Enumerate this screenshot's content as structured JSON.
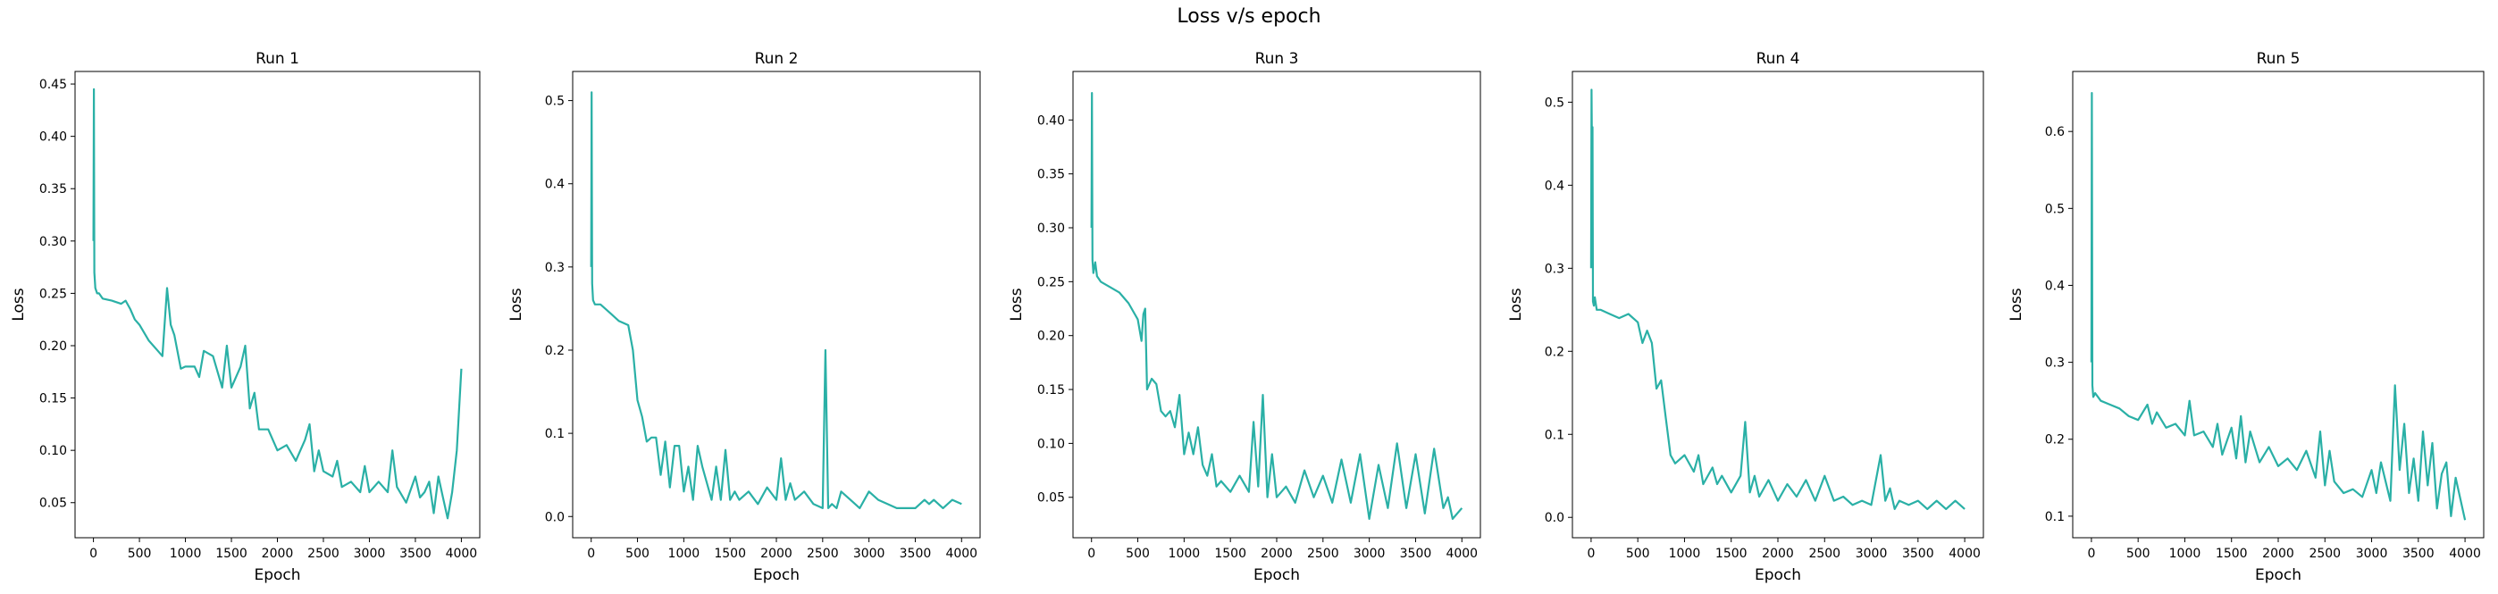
{
  "title": "Loss v/s epoch",
  "style": {
    "line_color": "#2ab0a6"
  },
  "chart_data": [
    {
      "type": "line",
      "title": "Run 1",
      "xlabel": "Epoch",
      "ylabel": "Loss",
      "xlim": [
        -200,
        4200
      ],
      "ylim": [
        0.0165,
        0.462
      ],
      "xticks": [
        0,
        500,
        1000,
        1500,
        2000,
        2500,
        3000,
        3500,
        4000
      ],
      "yticks": [
        0.05,
        0.1,
        0.15,
        0.2,
        0.25,
        0.3,
        0.35,
        0.4,
        0.45
      ],
      "grid": false,
      "series": [
        {
          "x": [
            0,
            5,
            10,
            20,
            40,
            60,
            100,
            200,
            300,
            350,
            400,
            450,
            500,
            600,
            700,
            750,
            800,
            840,
            880,
            950,
            1000,
            1100,
            1150,
            1200,
            1300,
            1400,
            1450,
            1500,
            1600,
            1650,
            1700,
            1750,
            1800,
            1900,
            2000,
            2100,
            2200,
            2300,
            2350,
            2400,
            2450,
            2500,
            2600,
            2650,
            2700,
            2800,
            2900,
            2950,
            3000,
            3100,
            3200,
            3250,
            3300,
            3400,
            3500,
            3550,
            3600,
            3650,
            3700,
            3750,
            3800,
            3850,
            3900,
            3950,
            4000
          ],
          "y": [
            0.3,
            0.445,
            0.27,
            0.255,
            0.25,
            0.25,
            0.245,
            0.243,
            0.24,
            0.243,
            0.235,
            0.225,
            0.22,
            0.205,
            0.195,
            0.19,
            0.255,
            0.22,
            0.21,
            0.178,
            0.18,
            0.18,
            0.17,
            0.195,
            0.19,
            0.16,
            0.2,
            0.16,
            0.18,
            0.2,
            0.14,
            0.155,
            0.12,
            0.12,
            0.1,
            0.105,
            0.09,
            0.11,
            0.125,
            0.08,
            0.1,
            0.08,
            0.075,
            0.09,
            0.065,
            0.07,
            0.06,
            0.085,
            0.06,
            0.07,
            0.06,
            0.1,
            0.065,
            0.05,
            0.075,
            0.055,
            0.06,
            0.07,
            0.04,
            0.075,
            0.055,
            0.035,
            0.06,
            0.1,
            0.178
          ]
        }
      ]
    },
    {
      "type": "line",
      "title": "Run 2",
      "xlabel": "Epoch",
      "ylabel": "Loss",
      "xlim": [
        -200,
        4200
      ],
      "ylim": [
        -0.0255,
        0.535
      ],
      "xticks": [
        0,
        500,
        1000,
        1500,
        2000,
        2500,
        3000,
        3500,
        4000
      ],
      "yticks": [
        0.0,
        0.1,
        0.2,
        0.3,
        0.4,
        0.5
      ],
      "grid": false,
      "series": [
        {
          "x": [
            0,
            5,
            10,
            20,
            40,
            100,
            200,
            300,
            400,
            450,
            500,
            550,
            600,
            650,
            700,
            750,
            800,
            850,
            900,
            950,
            1000,
            1050,
            1100,
            1150,
            1200,
            1250,
            1300,
            1350,
            1400,
            1450,
            1500,
            1550,
            1600,
            1700,
            1800,
            1900,
            2000,
            2050,
            2100,
            2150,
            2200,
            2300,
            2400,
            2500,
            2530,
            2560,
            2600,
            2650,
            2700,
            2800,
            2900,
            3000,
            3100,
            3200,
            3300,
            3400,
            3500,
            3600,
            3650,
            3700,
            3800,
            3900,
            4000
          ],
          "y": [
            0.3,
            0.51,
            0.28,
            0.26,
            0.255,
            0.255,
            0.245,
            0.235,
            0.23,
            0.2,
            0.14,
            0.12,
            0.09,
            0.095,
            0.095,
            0.05,
            0.09,
            0.035,
            0.085,
            0.085,
            0.03,
            0.06,
            0.02,
            0.085,
            0.06,
            0.04,
            0.02,
            0.06,
            0.02,
            0.08,
            0.02,
            0.03,
            0.02,
            0.03,
            0.015,
            0.035,
            0.02,
            0.07,
            0.02,
            0.04,
            0.02,
            0.03,
            0.015,
            0.01,
            0.2,
            0.01,
            0.015,
            0.01,
            0.03,
            0.02,
            0.01,
            0.03,
            0.02,
            0.015,
            0.01,
            0.01,
            0.01,
            0.02,
            0.015,
            0.02,
            0.01,
            0.02,
            0.015
          ]
        }
      ]
    },
    {
      "type": "line",
      "title": "Run 3",
      "xlabel": "Epoch",
      "ylabel": "Loss",
      "xlim": [
        -200,
        4200
      ],
      "ylim": [
        0.0125,
        0.445
      ],
      "xticks": [
        0,
        500,
        1000,
        1500,
        2000,
        2500,
        3000,
        3500,
        4000
      ],
      "yticks": [
        0.05,
        0.1,
        0.15,
        0.2,
        0.25,
        0.3,
        0.35,
        0.4
      ],
      "grid": false,
      "series": [
        {
          "x": [
            0,
            5,
            10,
            20,
            40,
            60,
            100,
            200,
            300,
            400,
            500,
            540,
            560,
            580,
            600,
            650,
            700,
            750,
            800,
            850,
            900,
            950,
            1000,
            1050,
            1100,
            1150,
            1200,
            1250,
            1300,
            1350,
            1400,
            1500,
            1600,
            1700,
            1750,
            1800,
            1850,
            1900,
            1950,
            2000,
            2100,
            2200,
            2300,
            2400,
            2500,
            2600,
            2700,
            2800,
            2900,
            3000,
            3100,
            3200,
            3300,
            3400,
            3500,
            3600,
            3700,
            3800,
            3850,
            3900,
            4000
          ],
          "y": [
            0.3,
            0.425,
            0.27,
            0.258,
            0.268,
            0.255,
            0.25,
            0.245,
            0.24,
            0.23,
            0.215,
            0.195,
            0.22,
            0.225,
            0.15,
            0.16,
            0.155,
            0.13,
            0.125,
            0.13,
            0.115,
            0.145,
            0.09,
            0.11,
            0.09,
            0.115,
            0.08,
            0.07,
            0.09,
            0.06,
            0.065,
            0.055,
            0.07,
            0.055,
            0.12,
            0.06,
            0.145,
            0.05,
            0.09,
            0.05,
            0.06,
            0.045,
            0.075,
            0.05,
            0.07,
            0.045,
            0.085,
            0.045,
            0.09,
            0.03,
            0.08,
            0.04,
            0.1,
            0.04,
            0.09,
            0.035,
            0.095,
            0.04,
            0.05,
            0.03,
            0.04
          ]
        }
      ]
    },
    {
      "type": "line",
      "title": "Run 4",
      "xlabel": "Epoch",
      "ylabel": "Loss",
      "xlim": [
        -200,
        4200
      ],
      "ylim": [
        -0.0245,
        0.537
      ],
      "xticks": [
        0,
        500,
        1000,
        1500,
        2000,
        2500,
        3000,
        3500,
        4000
      ],
      "yticks": [
        0.0,
        0.1,
        0.2,
        0.3,
        0.4,
        0.5
      ],
      "grid": false,
      "series": [
        {
          "x": [
            0,
            5,
            10,
            15,
            20,
            30,
            40,
            60,
            100,
            200,
            300,
            400,
            500,
            550,
            600,
            650,
            700,
            750,
            800,
            850,
            900,
            1000,
            1100,
            1150,
            1200,
            1300,
            1350,
            1400,
            1500,
            1600,
            1650,
            1700,
            1750,
            1800,
            1900,
            2000,
            2100,
            2200,
            2300,
            2400,
            2500,
            2600,
            2700,
            2800,
            2900,
            3000,
            3100,
            3150,
            3200,
            3250,
            3300,
            3400,
            3500,
            3600,
            3700,
            3800,
            3900,
            4000
          ],
          "y": [
            0.3,
            0.515,
            0.42,
            0.47,
            0.26,
            0.255,
            0.265,
            0.25,
            0.25,
            0.245,
            0.24,
            0.245,
            0.235,
            0.21,
            0.225,
            0.21,
            0.155,
            0.165,
            0.12,
            0.075,
            0.065,
            0.075,
            0.055,
            0.075,
            0.04,
            0.06,
            0.04,
            0.05,
            0.03,
            0.05,
            0.115,
            0.03,
            0.05,
            0.025,
            0.045,
            0.02,
            0.04,
            0.025,
            0.045,
            0.02,
            0.05,
            0.02,
            0.025,
            0.015,
            0.02,
            0.015,
            0.075,
            0.02,
            0.035,
            0.01,
            0.02,
            0.015,
            0.02,
            0.01,
            0.02,
            0.01,
            0.02,
            0.01
          ]
        }
      ]
    },
    {
      "type": "line",
      "title": "Run 5",
      "xlabel": "Epoch",
      "ylabel": "Loss",
      "xlim": [
        -200,
        4200
      ],
      "ylim": [
        0.072,
        0.678
      ],
      "xticks": [
        0,
        500,
        1000,
        1500,
        2000,
        2500,
        3000,
        3500,
        4000
      ],
      "yticks": [
        0.1,
        0.2,
        0.3,
        0.4,
        0.5,
        0.6
      ],
      "grid": false,
      "series": [
        {
          "x": [
            0,
            5,
            10,
            20,
            40,
            100,
            200,
            300,
            400,
            500,
            600,
            650,
            700,
            800,
            900,
            1000,
            1050,
            1100,
            1200,
            1300,
            1350,
            1400,
            1500,
            1550,
            1600,
            1650,
            1700,
            1800,
            1900,
            2000,
            2100,
            2200,
            2300,
            2400,
            2450,
            2500,
            2550,
            2600,
            2700,
            2800,
            2900,
            3000,
            3050,
            3100,
            3200,
            3250,
            3300,
            3350,
            3400,
            3450,
            3500,
            3550,
            3600,
            3650,
            3700,
            3750,
            3800,
            3850,
            3900,
            4000
          ],
          "y": [
            0.3,
            0.65,
            0.27,
            0.255,
            0.26,
            0.25,
            0.245,
            0.24,
            0.23,
            0.225,
            0.245,
            0.22,
            0.235,
            0.215,
            0.22,
            0.205,
            0.25,
            0.205,
            0.21,
            0.19,
            0.22,
            0.18,
            0.215,
            0.175,
            0.23,
            0.17,
            0.21,
            0.17,
            0.19,
            0.165,
            0.175,
            0.16,
            0.185,
            0.15,
            0.21,
            0.14,
            0.185,
            0.145,
            0.13,
            0.135,
            0.125,
            0.16,
            0.13,
            0.17,
            0.12,
            0.27,
            0.16,
            0.22,
            0.13,
            0.175,
            0.12,
            0.21,
            0.14,
            0.195,
            0.11,
            0.155,
            0.17,
            0.1,
            0.15,
            0.095
          ]
        }
      ]
    }
  ]
}
